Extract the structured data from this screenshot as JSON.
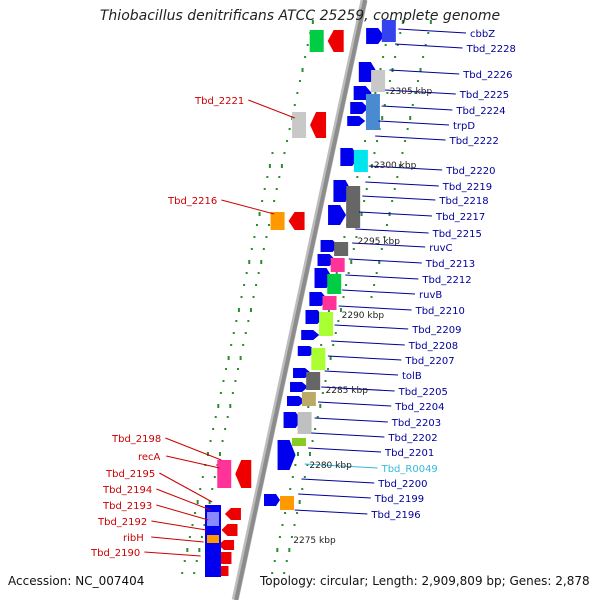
{
  "title": "Thiobacillus denitrificans ATCC 25259, complete genome",
  "footer": {
    "accession": "Accession: NC_007404",
    "summary": "Topology: circular; Length: 2,909,809 bp; Genes: 2,878"
  },
  "colors": {
    "backbone": "#8c8c8c",
    "tick": "#2e8b2e",
    "forward_label": "#000099",
    "reverse_label": "#cc0000",
    "rna_label": "#33bbdd",
    "forward_gene": "#0000ee",
    "reverse_gene": "#ee0000"
  },
  "ruler": [
    "2305 kbp",
    "2300 kbp",
    "2295 kbp",
    "2290 kbp",
    "2285 kbp",
    "2280 kbp",
    "2275 kbp"
  ],
  "forward_labels": [
    "cbbZ",
    "Tbd_2228",
    "Tbd_2226",
    "Tbd_2225",
    "Tbd_2224",
    "trpD",
    "Tbd_2222",
    "Tbd_2220",
    "Tbd_2219",
    "Tbd_2218",
    "Tbd_2217",
    "Tbd_2215",
    "ruvC",
    "Tbd_2213",
    "Tbd_2212",
    "ruvB",
    "Tbd_2210",
    "Tbd_2209",
    "Tbd_2208",
    "Tbd_2207",
    "tolB",
    "Tbd_2205",
    "Tbd_2204",
    "Tbd_2203",
    "Tbd_2202",
    "Tbd_2201",
    "Tbd_R0049",
    "Tbd_2200",
    "Tbd_2199",
    "Tbd_2196"
  ],
  "reverse_labels": [
    "Tbd_2221",
    "Tbd_2216",
    "Tbd_2198",
    "recA",
    "Tbd_2195",
    "Tbd_2194",
    "Tbd_2193",
    "Tbd_2192",
    "ribH",
    "Tbd_2190"
  ]
}
